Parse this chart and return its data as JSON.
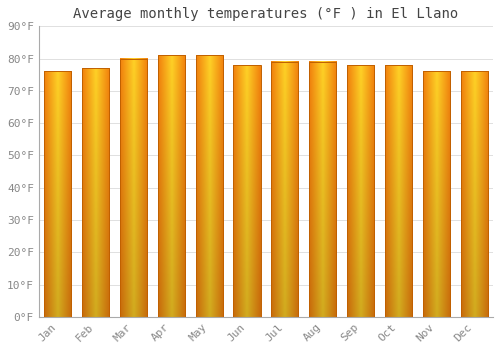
{
  "title": "Average monthly temperatures (°F ) in El Llano",
  "months": [
    "Jan",
    "Feb",
    "Mar",
    "Apr",
    "May",
    "Jun",
    "Jul",
    "Aug",
    "Sep",
    "Oct",
    "Nov",
    "Dec"
  ],
  "values": [
    76,
    77,
    80,
    81,
    81,
    78,
    79,
    79,
    78,
    78,
    76,
    76
  ],
  "ylim": [
    0,
    90
  ],
  "yticks": [
    0,
    10,
    20,
    30,
    40,
    50,
    60,
    70,
    80,
    90
  ],
  "ytick_labels": [
    "0°F",
    "10°F",
    "20°F",
    "30°F",
    "40°F",
    "50°F",
    "60°F",
    "70°F",
    "80°F",
    "90°F"
  ],
  "bar_color_edge": "#E07000",
  "bar_color_center": "#FFD040",
  "bar_color_dark": "#F08000",
  "background_color": "#FFFFFF",
  "grid_color": "#E0E0E0",
  "title_fontsize": 10,
  "tick_fontsize": 8,
  "title_color": "#444444",
  "tick_color": "#888888",
  "bar_width": 0.72
}
